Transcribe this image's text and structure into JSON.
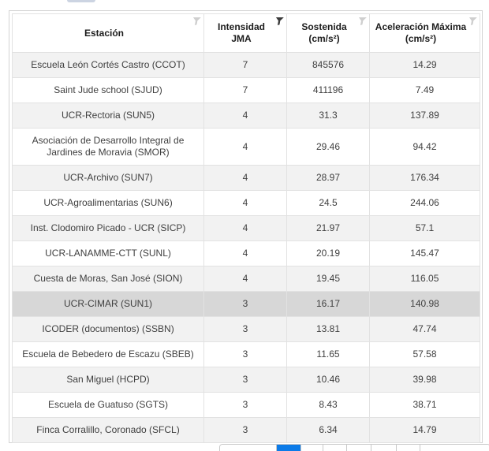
{
  "table": {
    "columns": [
      {
        "id": "estacion",
        "label_line1": "Estación",
        "label_line2": "",
        "filter_active": false
      },
      {
        "id": "intensidad",
        "label_line1": "Intensidad",
        "label_line2": "JMA",
        "filter_active": true
      },
      {
        "id": "sostenida",
        "label_line1": "Sostenida",
        "label_line2": "(cm/s²)",
        "filter_active": false
      },
      {
        "id": "aceleracion",
        "label_line1": "Aceleración Máxima",
        "label_line2": "(cm/s²)",
        "filter_active": false
      }
    ],
    "rows": [
      {
        "estacion": "Escuela León Cortés Castro (CCOT)",
        "intensidad_jma": "7",
        "sostenida": "845576",
        "aceleracion_maxima": "14.29",
        "state": "striped"
      },
      {
        "estacion": "Saint Jude school (SJUD)",
        "intensidad_jma": "7",
        "sostenida": "411196",
        "aceleracion_maxima": "7.49",
        "state": "plain"
      },
      {
        "estacion": "UCR-Rectoria (SUN5)",
        "intensidad_jma": "4",
        "sostenida": "31.3",
        "aceleracion_maxima": "137.89",
        "state": "striped"
      },
      {
        "estacion": "Asociación de Desarrollo Integral de Jardines de Moravia (SMOR)",
        "intensidad_jma": "4",
        "sostenida": "29.46",
        "aceleracion_maxima": "94.42",
        "state": "plain"
      },
      {
        "estacion": "UCR-Archivo (SUN7)",
        "intensidad_jma": "4",
        "sostenida": "28.97",
        "aceleracion_maxima": "176.34",
        "state": "striped"
      },
      {
        "estacion": "UCR-Agroalimentarias (SUN6)",
        "intensidad_jma": "4",
        "sostenida": "24.5",
        "aceleracion_maxima": "244.06",
        "state": "plain"
      },
      {
        "estacion": "Inst. Clodomiro Picado - UCR (SICP)",
        "intensidad_jma": "4",
        "sostenida": "21.97",
        "aceleracion_maxima": "57.1",
        "state": "striped"
      },
      {
        "estacion": "UCR-LANAMME-CTT (SUNL)",
        "intensidad_jma": "4",
        "sostenida": "20.19",
        "aceleracion_maxima": "145.47",
        "state": "plain"
      },
      {
        "estacion": "Cuesta de Moras, San José (SION)",
        "intensidad_jma": "4",
        "sostenida": "19.45",
        "aceleracion_maxima": "116.05",
        "state": "striped"
      },
      {
        "estacion": "UCR-CIMAR (SUN1)",
        "intensidad_jma": "3",
        "sostenida": "16.17",
        "aceleracion_maxima": "140.98",
        "state": "selected"
      },
      {
        "estacion": "ICODER (documentos) (SSBN)",
        "intensidad_jma": "3",
        "sostenida": "13.81",
        "aceleracion_maxima": "47.74",
        "state": "striped"
      },
      {
        "estacion": "Escuela de Bebedero de Escazu (SBEB)",
        "intensidad_jma": "3",
        "sostenida": "11.65",
        "aceleracion_maxima": "57.58",
        "state": "plain"
      },
      {
        "estacion": "San Miguel (HCPD)",
        "intensidad_jma": "3",
        "sostenida": "10.46",
        "aceleracion_maxima": "39.98",
        "state": "striped"
      },
      {
        "estacion": "Escuela de Guatuso (SGTS)",
        "intensidad_jma": "3",
        "sostenida": "8.43",
        "aceleracion_maxima": "38.71",
        "state": "plain"
      },
      {
        "estacion": "Finca Corralillo, Coronado (SFCL)",
        "intensidad_jma": "3",
        "sostenida": "6.34",
        "aceleracion_maxima": "14.79",
        "state": "striped"
      }
    ]
  },
  "pagination": {
    "segment_count": 8,
    "active_index": 1
  },
  "colors": {
    "striped_row_bg": "#f2f2f2",
    "selected_row_bg": "#d7d7d7",
    "pager_active_blue": "#0c7be8",
    "grid_border": "#e2e2e2",
    "header_text": "#1c1c1c",
    "cell_text": "#3f3f3f"
  }
}
